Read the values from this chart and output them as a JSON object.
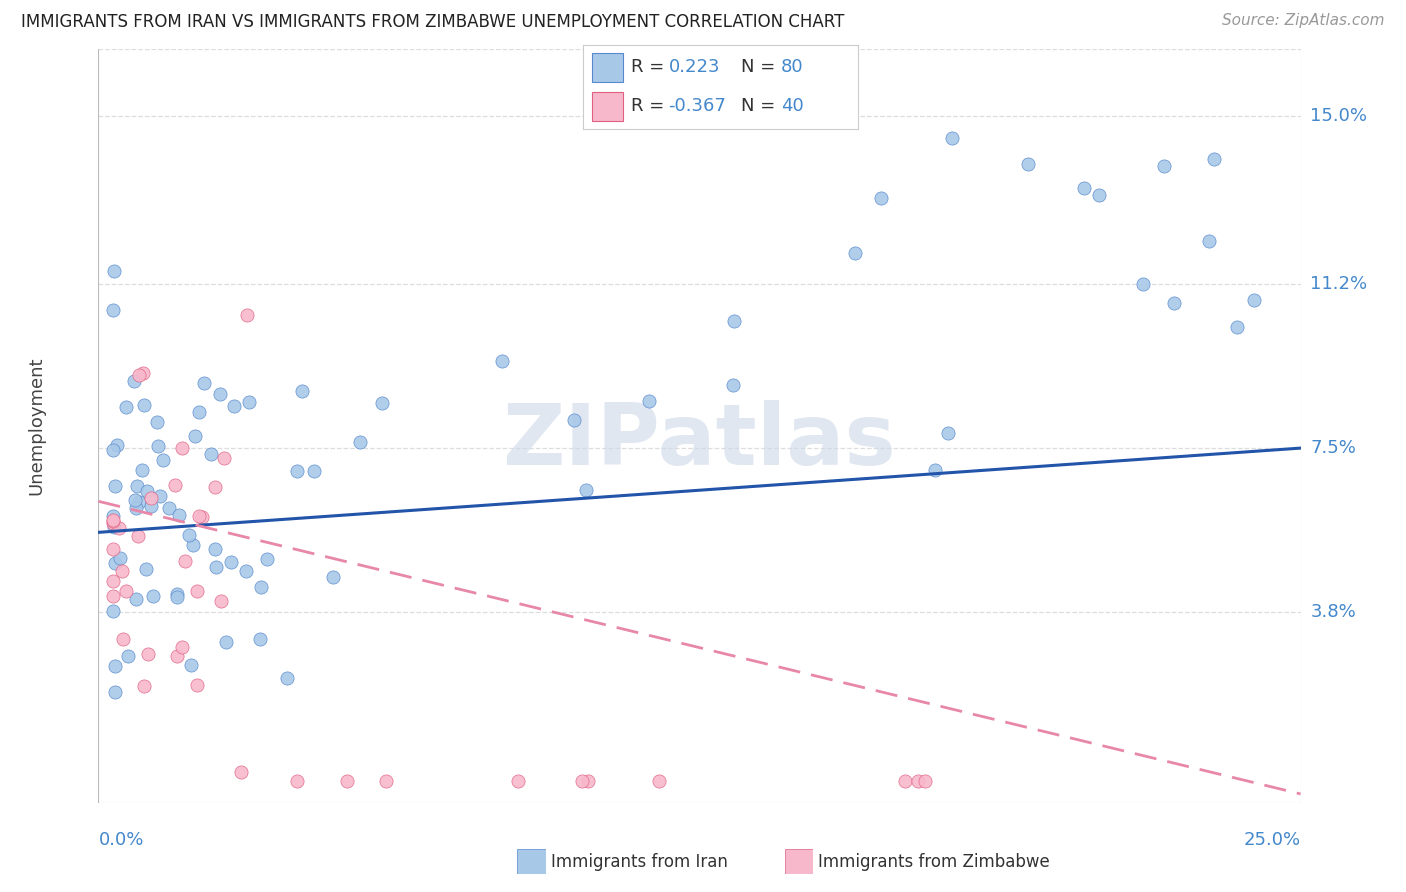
{
  "title": "IMMIGRANTS FROM IRAN VS IMMIGRANTS FROM ZIMBABWE UNEMPLOYMENT CORRELATION CHART",
  "source": "Source: ZipAtlas.com",
  "ylabel": "Unemployment",
  "xmin": 0.0,
  "xmax": 0.25,
  "ymin": -0.005,
  "ymax": 0.165,
  "iran_color": "#a8c8e8",
  "iran_color_dark": "#5588cc",
  "zimbabwe_color": "#f8b8cc",
  "zimbabwe_color_dark": "#e06080",
  "iran_R": 0.223,
  "iran_N": 80,
  "zimbabwe_R": -0.367,
  "zimbabwe_N": 40,
  "iran_line_color": "#2255aa",
  "iran_line_y0": 0.056,
  "iran_line_y1": 0.075,
  "zimbabwe_line_color": "#e888a8",
  "zimbabwe_line_y0": 0.063,
  "zimbabwe_line_y1": -0.003,
  "ytick_values": [
    0.038,
    0.075,
    0.112,
    0.15
  ],
  "ytick_labels": [
    "3.8%",
    "7.5%",
    "11.2%",
    "15.0%"
  ],
  "right_label_color": "#4488cc",
  "grid_color": "#dddddd",
  "watermark": "ZIPatlas",
  "watermark_color": "#ccd8e8",
  "background_color": "#ffffff",
  "legend_text_color": "#333333",
  "legend_value_color": "#4488cc",
  "bottom_legend_iran": "Immigrants from Iran",
  "bottom_legend_zimb": "Immigrants from Zimbabwe"
}
